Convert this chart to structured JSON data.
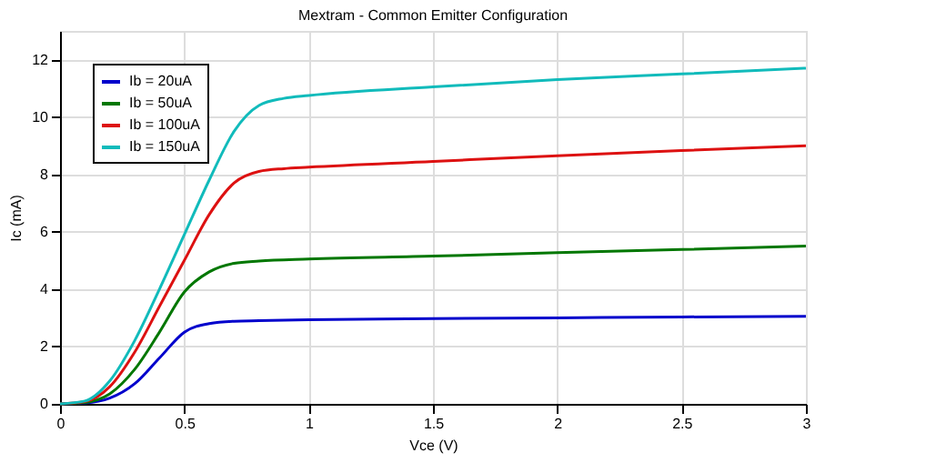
{
  "chart_data": {
    "type": "line",
    "title": "Mextram - Common Emitter Configuration",
    "xlabel": "Vce (V)",
    "ylabel": "Ic (mA)",
    "xlim": [
      0,
      3
    ],
    "xticks": [
      0,
      0.5,
      1,
      1.5,
      2,
      2.5,
      3
    ],
    "ylim": [
      0,
      13
    ],
    "yticks": [
      0,
      2,
      4,
      6,
      8,
      10,
      12
    ],
    "grid": true,
    "legend": "top left",
    "marker": "none",
    "line_style": "solid",
    "series": [
      {
        "name": "Ib = 20uA",
        "color": "#0000cc",
        "x": [
          0,
          0.1,
          0.2,
          0.3,
          0.4,
          0.5,
          0.6,
          0.7,
          0.8,
          1,
          1.5,
          2,
          2.5,
          3
        ],
        "values": [
          0,
          0.03,
          0.2,
          0.7,
          1.6,
          2.5,
          2.8,
          2.88,
          2.9,
          2.93,
          2.97,
          3.0,
          3.03,
          3.05
        ]
      },
      {
        "name": "Ib = 50uA",
        "color": "#007700",
        "x": [
          0,
          0.1,
          0.2,
          0.3,
          0.4,
          0.5,
          0.6,
          0.7,
          0.8,
          1,
          1.5,
          2,
          2.5,
          3
        ],
        "values": [
          0,
          0.05,
          0.35,
          1.2,
          2.5,
          3.9,
          4.6,
          4.9,
          4.98,
          5.05,
          5.15,
          5.27,
          5.38,
          5.5
        ]
      },
      {
        "name": "Ib = 100uA",
        "color": "#dd1111",
        "x": [
          0,
          0.1,
          0.2,
          0.3,
          0.4,
          0.5,
          0.6,
          0.7,
          0.8,
          0.9,
          1,
          1.5,
          2,
          2.5,
          3
        ],
        "values": [
          0,
          0.08,
          0.6,
          1.8,
          3.4,
          5.0,
          6.6,
          7.7,
          8.1,
          8.2,
          8.25,
          8.45,
          8.65,
          8.83,
          9.0
        ]
      },
      {
        "name": "Ib = 150uA",
        "color": "#11bbbb",
        "x": [
          0,
          0.1,
          0.2,
          0.3,
          0.4,
          0.5,
          0.6,
          0.7,
          0.8,
          0.9,
          1,
          1.5,
          2,
          2.5,
          3
        ],
        "values": [
          0,
          0.1,
          0.8,
          2.2,
          4.0,
          5.9,
          7.8,
          9.5,
          10.4,
          10.65,
          10.75,
          11.05,
          11.3,
          11.5,
          11.7
        ]
      }
    ]
  }
}
